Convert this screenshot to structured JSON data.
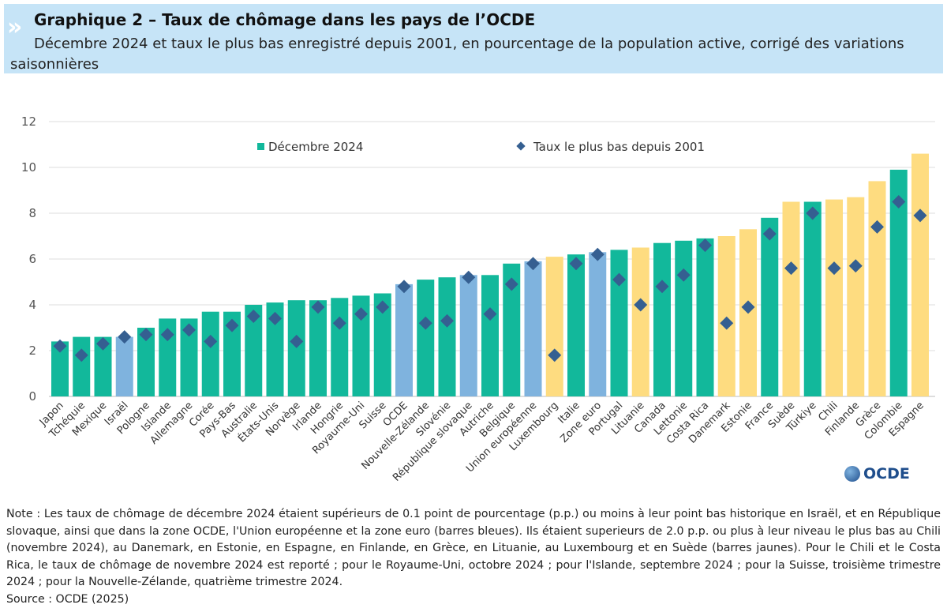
{
  "header": {
    "title": "Graphique 2 – Taux de chômage dans les pays de l’OCDE",
    "subtitle": "Décembre 2024 et taux le plus bas enregistré depuis 2001, en pourcentage de la population active, corrigé des variations saisonnières"
  },
  "colors": {
    "green": "#12b89b",
    "blue": "#7fb3de",
    "yellow": "#fedc80",
    "marker": "#355f91"
  },
  "chart_data": {
    "type": "bar",
    "ylim": [
      0,
      12
    ],
    "yticks": [
      0,
      2,
      4,
      6,
      8,
      10,
      12
    ],
    "grid": true,
    "legend_position": "top",
    "categories": [
      "Japon",
      "Tchéquie",
      "Mexique",
      "Israël",
      "Pologne",
      "Islande",
      "Allemagne",
      "Corée",
      "Pays-Bas",
      "Australie",
      "États-Unis",
      "Norvège",
      "Irlande",
      "Hongrie",
      "Royaume-Uni",
      "Suisse",
      "OCDE",
      "Nouvelle-Zélande",
      "Slovénie",
      "République slovaque",
      "Autriche",
      "Belgique",
      "Union européenne",
      "Luxembourg",
      "Italie",
      "Zone euro",
      "Portugal",
      "Lituanie",
      "Canada",
      "Lettonie",
      "Costa Rica",
      "Danemark",
      "Estonie",
      "France",
      "Suède",
      "Türkiye",
      "Chili",
      "Finlande",
      "Grèce",
      "Colombie",
      "Espagne"
    ],
    "bar_colors": [
      "green",
      "green",
      "green",
      "blue",
      "green",
      "green",
      "green",
      "green",
      "green",
      "green",
      "green",
      "green",
      "green",
      "green",
      "green",
      "green",
      "blue",
      "green",
      "green",
      "blue",
      "green",
      "green",
      "blue",
      "yellow",
      "green",
      "blue",
      "green",
      "yellow",
      "green",
      "green",
      "green",
      "yellow",
      "yellow",
      "green",
      "yellow",
      "green",
      "yellow",
      "yellow",
      "yellow",
      "green",
      "yellow"
    ],
    "series": [
      {
        "name": "Décembre 2024",
        "kind": "bar",
        "values": [
          2.4,
          2.6,
          2.6,
          2.6,
          3.0,
          3.4,
          3.4,
          3.7,
          3.7,
          4.0,
          4.1,
          4.2,
          4.2,
          4.3,
          4.4,
          4.5,
          4.9,
          5.1,
          5.2,
          5.3,
          5.3,
          5.8,
          5.9,
          6.1,
          6.2,
          6.3,
          6.4,
          6.5,
          6.7,
          6.8,
          6.9,
          7.0,
          7.3,
          7.8,
          8.5,
          8.5,
          8.6,
          8.7,
          9.4,
          9.9,
          10.6
        ]
      },
      {
        "name": "Taux le plus bas depuis 2001",
        "kind": "marker",
        "values": [
          2.2,
          1.8,
          2.3,
          2.6,
          2.7,
          2.7,
          2.9,
          2.4,
          3.1,
          3.5,
          3.4,
          2.4,
          3.9,
          3.2,
          3.6,
          3.9,
          4.8,
          3.2,
          3.3,
          5.2,
          3.6,
          4.9,
          5.8,
          1.8,
          5.8,
          6.2,
          5.1,
          4.0,
          4.8,
          5.3,
          6.6,
          3.2,
          3.9,
          7.1,
          5.6,
          8.0,
          5.6,
          5.7,
          7.4,
          8.5,
          7.9
        ]
      }
    ]
  },
  "logo": "OCDE",
  "note": "Note : Les taux de chômage de décembre 2024 étaient supérieurs de 0.1 point de pourcentage (p.p.) ou moins à leur point bas historique en Israël, et en République slovaque, ainsi que dans la zone OCDE, l'Union européenne et la zone euro (barres bleues). Ils étaient superieurs de 2.0 p.p. ou plus à leur niveau le plus bas au Chili (novembre 2024), au Danemark, en Estonie, en Espagne, en Finlande, en Grèce, en Lituanie, au Luxembourg et en Suède (barres jaunes). Pour le Chili et le Costa Rica, le taux de chômage de novembre 2024 est reporté ; pour le Royaume-Uni, octobre 2024 ; pour l'Islande, septembre 2024 ; pour la Suisse, troisième trimestre 2024 ; pour la Nouvelle-Zélande, quatrième trimestre 2024.",
  "source": "Source : OCDE (2025)"
}
